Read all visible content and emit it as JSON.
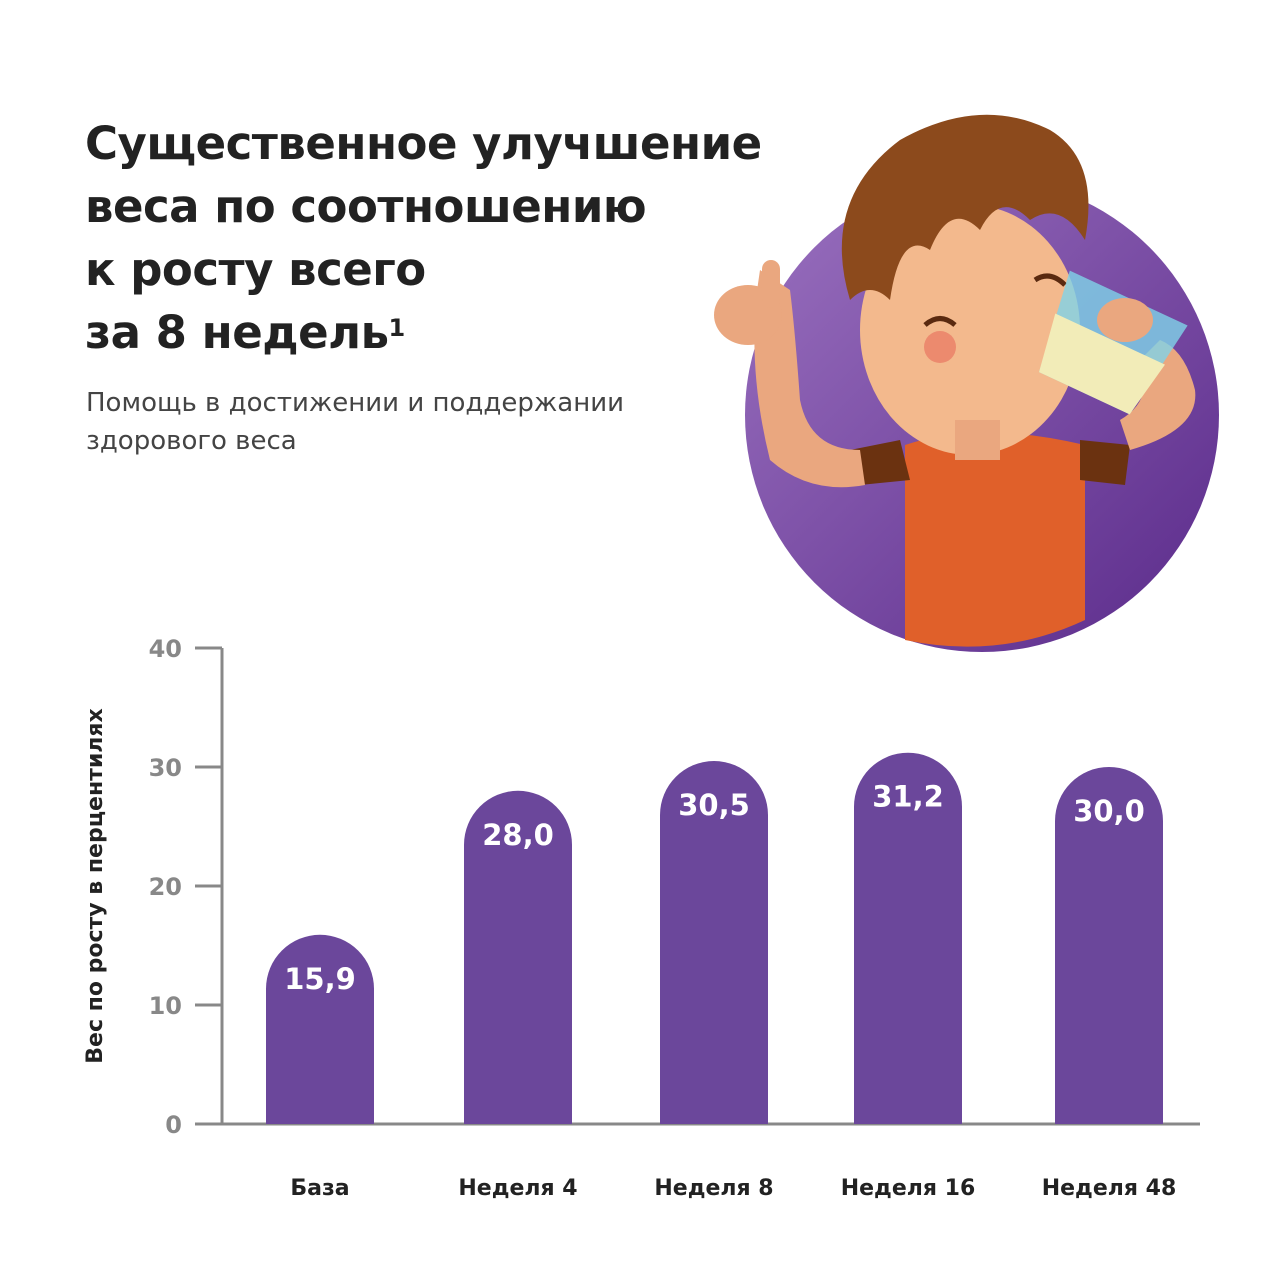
{
  "header": {
    "title_lines": [
      "Существенное улучшение",
      "веса по соотношению",
      "к росту всего",
      "за 8 недель"
    ],
    "title_footnote": "1",
    "subtitle": "Помощь в достижении и поддержании здорового веса"
  },
  "illustration": {
    "subject": "boy-drinking-milk-thumbs-up",
    "circle_color": "#6b3f9c"
  },
  "chart_data": {
    "type": "bar",
    "categories": [
      "База",
      "Неделя 4",
      "Неделя 8",
      "Неделя 16",
      "Неделя 48"
    ],
    "values": [
      15.9,
      28.0,
      30.5,
      31.2,
      30.0
    ],
    "data_labels": [
      "15,9",
      "28,0",
      "30,5",
      "31,2",
      "30,0"
    ],
    "ylabel": "Вес по росту в перцентилях",
    "xlabel": "",
    "ylim": [
      0,
      40
    ],
    "yticks": [
      0,
      10,
      20,
      30,
      40
    ],
    "grid": false,
    "bar_color": "#6b479b",
    "axis_color": "#888888"
  }
}
